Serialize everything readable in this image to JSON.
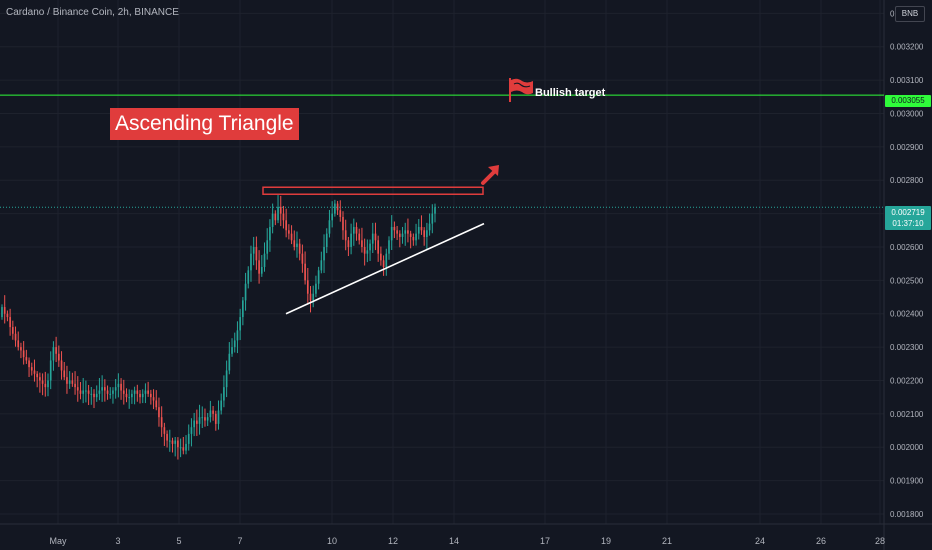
{
  "header": {
    "title": "Cardano / Binance Coin, 2h, BINANCE",
    "currency": "BNB"
  },
  "annotations": {
    "pattern_label": "Ascending Triangle",
    "target_label": "Bullish target",
    "target_price": "0.003055",
    "last_price": "0.002719",
    "countdown": "01:37:10"
  },
  "colors": {
    "background": "#131722",
    "up": "#26a69a",
    "down": "#ef5350",
    "target_line": "#2ffb3a",
    "resistance": "#e03c3c",
    "support_line": "#ffffff"
  },
  "icons": {
    "target": "red-flag-icon",
    "breakout": "red-up-arrow-icon"
  },
  "chart_data": {
    "type": "candlestick",
    "title": "Cardano / Binance Coin, 2h, BINANCE",
    "xlabel": "",
    "ylabel": "",
    "ylim": [
      0.00177,
      0.00334
    ],
    "yticks": [
      "0.001800",
      "0.001900",
      "0.002000",
      "0.002100",
      "0.002200",
      "0.002300",
      "0.002400",
      "0.002500",
      "0.002600",
      "0.002700",
      "0.002800",
      "0.002900",
      "0.003000",
      "0.003100",
      "0.003200",
      "0.003300"
    ],
    "xtick_labels": [
      "May",
      "3",
      "5",
      "7",
      "10",
      "12",
      "14",
      "17",
      "19",
      "21",
      "24",
      "26",
      "28"
    ],
    "candle_period_hours": 2,
    "grid": true,
    "close_series": [
      0.00242,
      0.0024,
      0.00239,
      0.00236,
      0.00234,
      0.00232,
      0.0023,
      0.00229,
      0.00227,
      0.00226,
      0.00224,
      0.00223,
      0.00222,
      0.00221,
      0.0022,
      0.00219,
      0.00218,
      0.0022,
      0.00226,
      0.0023,
      0.00228,
      0.00226,
      0.00223,
      0.00221,
      0.00219,
      0.0022,
      0.00219,
      0.00218,
      0.00217,
      0.00216,
      0.00217,
      0.00217,
      0.00216,
      0.00216,
      0.00215,
      0.00216,
      0.00217,
      0.00218,
      0.00217,
      0.00216,
      0.00216,
      0.00217,
      0.00218,
      0.00219,
      0.00217,
      0.00216,
      0.00215,
      0.00215,
      0.00216,
      0.00217,
      0.00216,
      0.00215,
      0.00216,
      0.00217,
      0.00216,
      0.00215,
      0.00214,
      0.00212,
      0.00209,
      0.00206,
      0.00204,
      0.00202,
      0.00202,
      0.00201,
      0.00202,
      0.002,
      0.002,
      0.00199,
      0.00201,
      0.00204,
      0.00206,
      0.00208,
      0.00207,
      0.00209,
      0.00209,
      0.00208,
      0.00209,
      0.00211,
      0.0021,
      0.00207,
      0.00211,
      0.00214,
      0.00218,
      0.00223,
      0.00228,
      0.0023,
      0.00232,
      0.00235,
      0.00239,
      0.00244,
      0.00249,
      0.00253,
      0.00258,
      0.0026,
      0.00256,
      0.00252,
      0.00254,
      0.00258,
      0.00262,
      0.00266,
      0.0027,
      0.00268,
      0.00272,
      0.0027,
      0.00268,
      0.00265,
      0.00264,
      0.00262,
      0.0026,
      0.00261,
      0.00258,
      0.00255,
      0.0025,
      0.00246,
      0.00244,
      0.00246,
      0.00249,
      0.00253,
      0.00256,
      0.0026,
      0.00264,
      0.00268,
      0.0027,
      0.00273,
      0.00271,
      0.00269,
      0.00265,
      0.00262,
      0.0026,
      0.00264,
      0.00266,
      0.00264,
      0.00262,
      0.0026,
      0.00258,
      0.00259,
      0.00261,
      0.00264,
      0.00262,
      0.00258,
      0.00256,
      0.00254,
      0.00258,
      0.00262,
      0.00266,
      0.00265,
      0.00264,
      0.00263,
      0.00264,
      0.00265,
      0.00264,
      0.00263,
      0.00262,
      0.00264,
      0.00266,
      0.00265,
      0.00263,
      0.00265,
      0.00267,
      0.0027,
      0.002719
    ],
    "annotations": [
      {
        "label": "Bullish target",
        "price": 0.003055,
        "type": "horizontal_line"
      },
      {
        "label": "Ascending Triangle",
        "type": "pattern",
        "resistance": 0.00277,
        "support_from": 0.0024,
        "support_to": 0.00267
      }
    ]
  }
}
